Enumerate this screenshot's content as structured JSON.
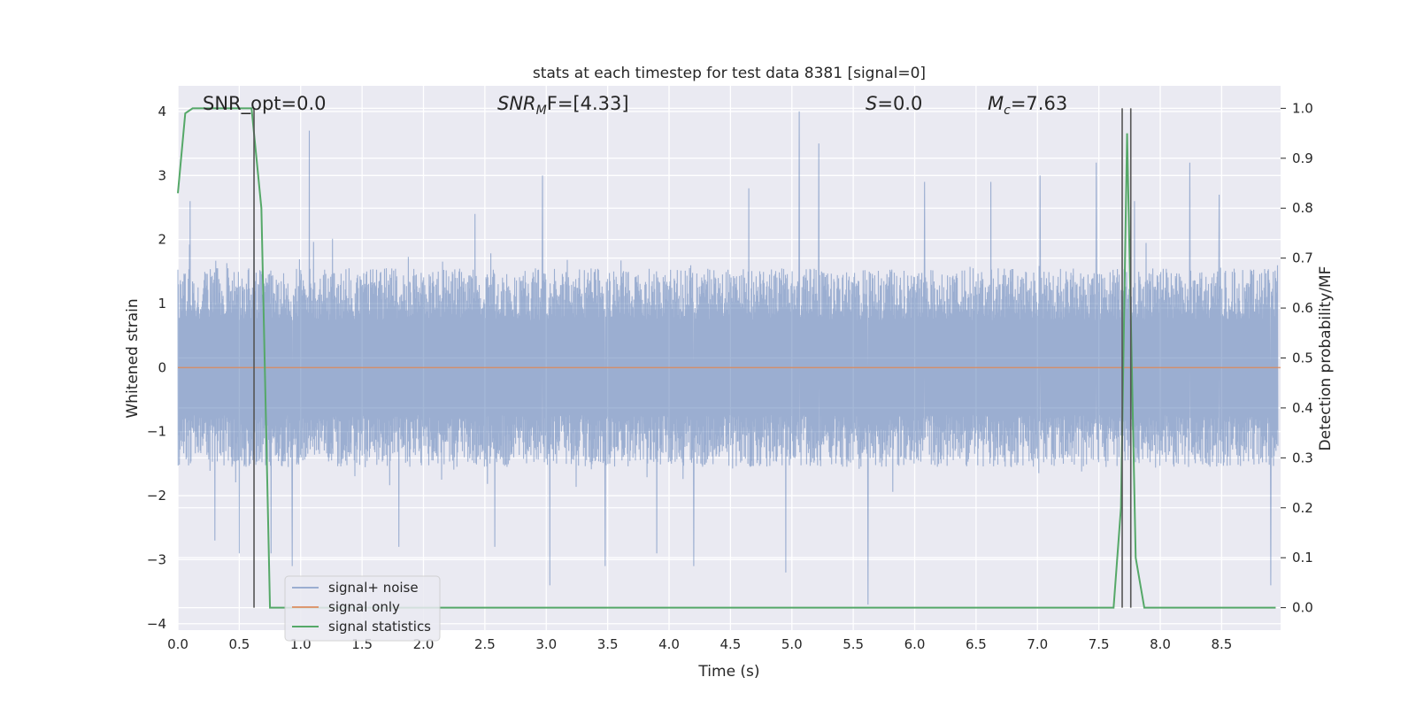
{
  "chart_data": {
    "type": "line",
    "title": "stats at each timestep for test data 8381 [signal=0]",
    "xlabel": "Time (s)",
    "ylabel_left": "Whitened strain",
    "ylabel_right": "Detection probability/MF",
    "xlim": [
      0,
      8.98
    ],
    "ylim_left": [
      -4.1,
      4.4
    ],
    "ylim_right": [
      -0.045,
      1.045
    ],
    "x_ticks": [
      "0.0",
      "0.5",
      "1.0",
      "1.5",
      "2.0",
      "2.5",
      "3.0",
      "3.5",
      "4.0",
      "4.5",
      "5.0",
      "5.5",
      "6.0",
      "6.5",
      "7.0",
      "7.5",
      "8.0",
      "8.5"
    ],
    "y_left_ticks": [
      "−4",
      "−3",
      "−2",
      "−1",
      "0",
      "1",
      "2",
      "3",
      "4"
    ],
    "y_right_ticks": [
      "0.0",
      "0.1",
      "0.2",
      "0.3",
      "0.4",
      "0.5",
      "0.6",
      "0.7",
      "0.8",
      "0.9",
      "1.0"
    ],
    "grid": true,
    "legend_position": "lower-left",
    "annotations": {
      "snr_opt": "SNR_opt=0.0",
      "snr_mf_main": "SNR",
      "snr_mf_sub": "M",
      "snr_mf_rest": "F=[4.33]",
      "s_main": "S",
      "s_rest": "=0.0",
      "mc_main": "M",
      "mc_sub": "c",
      "mc_rest": "=7.63"
    },
    "series": [
      {
        "name": "signal+ noise",
        "color": "#4c72b0",
        "axis": "left",
        "description_stats": {
          "mean": 0.0,
          "band": [
            -1.35,
            1.35
          ],
          "extremes": [
            -3.7,
            4.0
          ]
        },
        "peaks": [
          [
            0.1,
            2.6
          ],
          [
            0.3,
            -2.7
          ],
          [
            0.5,
            -2.9
          ],
          [
            0.62,
            2.2
          ],
          [
            0.76,
            -2.9
          ],
          [
            0.93,
            -3.1
          ],
          [
            1.07,
            3.7
          ],
          [
            1.8,
            -2.8
          ],
          [
            2.42,
            2.4
          ],
          [
            2.58,
            -2.8
          ],
          [
            2.97,
            3.0
          ],
          [
            3.03,
            -3.4
          ],
          [
            3.48,
            -3.1
          ],
          [
            3.9,
            -2.9
          ],
          [
            4.2,
            -3.1
          ],
          [
            4.65,
            2.8
          ],
          [
            4.95,
            -3.2
          ],
          [
            5.06,
            4.0
          ],
          [
            5.22,
            3.5
          ],
          [
            5.62,
            -3.7
          ],
          [
            6.08,
            2.9
          ],
          [
            6.62,
            2.9
          ],
          [
            7.02,
            3.0
          ],
          [
            7.48,
            3.2
          ],
          [
            7.79,
            2.6
          ],
          [
            8.24,
            3.2
          ],
          [
            8.48,
            2.7
          ],
          [
            8.9,
            -3.4
          ]
        ]
      },
      {
        "name": "signal only",
        "color": "#dd8452",
        "axis": "left",
        "x": [
          0,
          8.98
        ],
        "y": [
          0,
          0
        ]
      },
      {
        "name": "signal statistics",
        "color": "#55a868",
        "axis": "right",
        "x": [
          0,
          0.06,
          0.12,
          0.6,
          0.68,
          0.75,
          7.62,
          7.68,
          7.73,
          7.8,
          7.87,
          8.94
        ],
        "y": [
          0.83,
          0.99,
          1.0,
          1.0,
          0.8,
          0.0,
          0.0,
          0.2,
          0.95,
          0.1,
          0.0,
          0.0
        ]
      }
    ],
    "vertical_lines": [
      0.62,
      7.69,
      7.76
    ]
  },
  "legend": {
    "items": [
      {
        "label": "signal+ noise",
        "color": "#4c72b0"
      },
      {
        "label": "signal only",
        "color": "#dd8452"
      },
      {
        "label": "signal statistics",
        "color": "#55a868"
      }
    ]
  }
}
